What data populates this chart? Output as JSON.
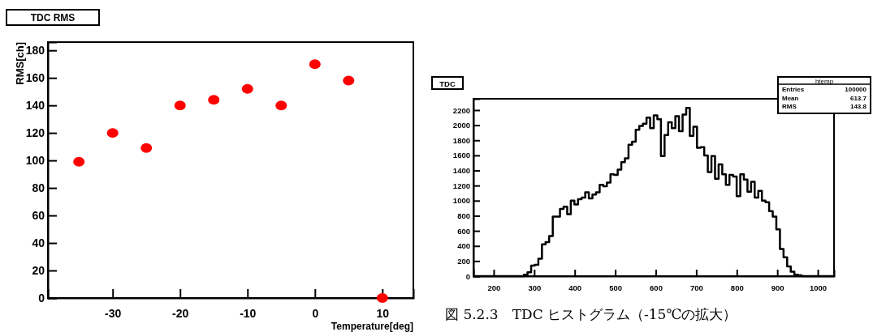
{
  "chart_data": [
    {
      "type": "scatter",
      "title": "TDC RMS",
      "xlabel": "Temperature[deg]",
      "ylabel": "RMS[ch]",
      "x": [
        -35,
        -30,
        -25,
        -20,
        -15,
        -10,
        -5,
        0,
        5,
        10
      ],
      "series": [
        {
          "color": "#ff0000",
          "values": [
            99,
            120,
            109,
            140,
            144,
            152,
            140,
            170,
            158,
            0
          ]
        }
      ],
      "xlim": [
        -39.6,
        14.6
      ],
      "xticks": [
        -30,
        -20,
        -10,
        0,
        10
      ],
      "ylim": [
        0,
        186
      ],
      "yticks": [
        0,
        20,
        40,
        60,
        80,
        100,
        120,
        140,
        160,
        180
      ],
      "marker": "circle",
      "grid": false
    },
    {
      "type": "histogram",
      "title": "TDC",
      "color": "#000000",
      "bins": [
        150,
        158.9,
        167.8,
        176.7,
        185.6,
        194.5,
        203.4,
        212.3,
        221.2,
        230.1,
        239,
        247.9,
        256.8,
        265.7,
        274.6,
        283.5,
        292.4,
        301.3,
        310.2,
        319.1,
        328,
        336.9,
        345.8,
        354.7,
        363.6,
        372.5,
        381.4,
        390.3,
        399.2,
        408.1,
        417,
        425.9,
        434.8,
        443.7,
        452.6,
        461.5,
        470.4,
        479.3,
        488.2,
        497.1,
        506,
        514.9,
        523.8,
        532.7,
        541.6,
        550.5,
        559.4,
        568.3,
        577.2,
        586.1,
        595,
        603.9,
        612.8,
        621.7,
        630.6,
        639.5,
        648.4,
        657.3,
        666.2,
        675.1,
        684,
        692.9,
        701.8,
        710.7,
        719.6,
        728.5,
        737.4,
        746.3,
        755.2,
        764.1,
        773,
        781.9,
        790.8,
        799.7,
        808.6,
        817.5,
        826.4,
        835.3,
        844.2,
        853.1,
        862,
        870.9,
        879.8,
        888.7,
        897.6,
        906.5,
        915.4,
        924.3,
        933.2,
        942.1,
        951,
        959.9,
        968.8,
        977.7,
        986.6,
        995.5,
        1004.4,
        1013.3,
        1022.2,
        1031.1,
        1040
      ],
      "values": [
        0,
        0,
        0,
        0,
        0,
        0,
        0,
        0,
        0,
        0,
        0,
        0,
        0,
        0,
        20,
        50,
        140,
        150,
        230,
        420,
        450,
        530,
        790,
        790,
        890,
        920,
        820,
        1000,
        950,
        1020,
        1040,
        1110,
        1030,
        1080,
        1110,
        1210,
        1190,
        1240,
        1350,
        1340,
        1410,
        1510,
        1560,
        1740,
        1780,
        1940,
        1990,
        2020,
        2100,
        1960,
        2130,
        2080,
        1590,
        1870,
        2040,
        1960,
        2120,
        1920,
        2140,
        2230,
        1860,
        1980,
        1700,
        1710,
        1600,
        1380,
        1590,
        1290,
        1480,
        1350,
        1210,
        1340,
        1320,
        1060,
        1350,
        1280,
        1120,
        1250,
        1040,
        1130,
        1000,
        980,
        860,
        790,
        620,
        360,
        250,
        130,
        60,
        20,
        10,
        0,
        0,
        0,
        0,
        0,
        0,
        0,
        0,
        0
      ],
      "xlim": [
        150,
        1040
      ],
      "xticks": [
        200,
        300,
        400,
        500,
        600,
        700,
        800,
        900,
        1000
      ],
      "ylim": [
        0,
        2350
      ],
      "yticks": [
        0,
        200,
        400,
        600,
        800,
        1000,
        1200,
        1400,
        1600,
        1800,
        2000,
        2200
      ],
      "grid": false,
      "annotations": [
        "htemp",
        "Entries",
        "100000",
        "Mean",
        "613.7",
        "RMS",
        "143.8",
        "図 5.2.3　TDC ヒストグラム（-15℃の拡大）"
      ]
    }
  ]
}
